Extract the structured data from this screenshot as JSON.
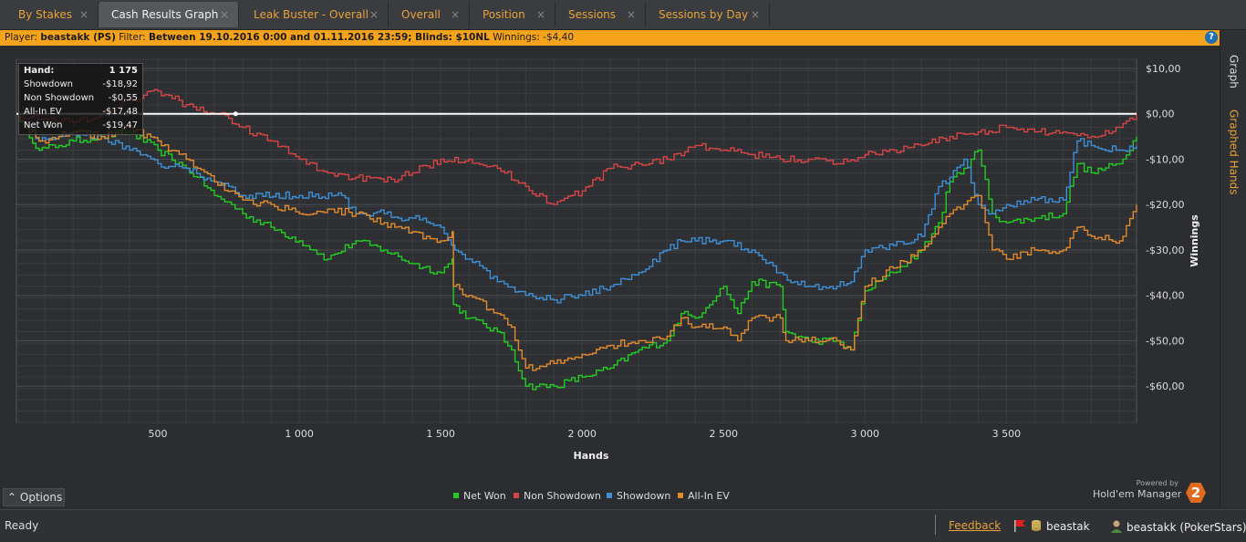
{
  "tabs": [
    {
      "label": "By Stakes",
      "active": false
    },
    {
      "label": "Cash Results Graph",
      "active": true
    },
    {
      "label": "Leak Buster - Overall",
      "active": false
    },
    {
      "label": "Overall",
      "active": false
    },
    {
      "label": "Position",
      "active": false
    },
    {
      "label": "Sessions",
      "active": false
    },
    {
      "label": "Sessions by Day",
      "active": false
    }
  ],
  "tab_close_glyph": "×",
  "filter_bar": {
    "player_label": "Player:",
    "player_value": "beastakk (PS)",
    "filter_label": "Filter:",
    "filter_value": "Between 19.10.2016 0:00 and 01.11.2016 23:59; Blinds: $10NL",
    "winnings_label": "Winnings:",
    "winnings_value": "-$4,40",
    "help_glyph": "?"
  },
  "side_tabs": {
    "graph": "Graph",
    "graphed_hands": "Graphed Hands"
  },
  "tooltip": {
    "rows": [
      {
        "label": "Hand:",
        "value": "1 175"
      },
      {
        "label": "Showdown",
        "value": "-$18,92"
      },
      {
        "label": "Non Showdown",
        "value": "-$0,55"
      },
      {
        "label": "All-In EV",
        "value": "-$17,48"
      },
      {
        "label": "Net Won",
        "value": "-$19,47"
      }
    ]
  },
  "legend": {
    "net_won": "Net Won",
    "non_showdown": "Non Showdown",
    "showdown": "Showdown",
    "all_in_ev": "All-In EV"
  },
  "options_label": "Options",
  "options_glyph": "⌃",
  "powered_by": "Powered by",
  "brand": "Hold'em Manager",
  "brand_badge": "2",
  "status": {
    "ready": "Ready",
    "feedback": "Feedback",
    "db_user": "beastak",
    "player": "beastakk (PokerStars)"
  },
  "colors": {
    "net_won": "#22cc22",
    "non_showdown": "#d64545",
    "showdown": "#3d8fd6",
    "all_in_ev": "#e08a2e",
    "accent": "#f6a31c"
  },
  "chart_data": {
    "type": "line",
    "xlabel": "Hands",
    "ylabel": "Winnings",
    "xlim": [
      0,
      3960
    ],
    "ylim": [
      -68,
      12
    ],
    "x_ticks": [
      500,
      1000,
      1500,
      2000,
      2500,
      3000,
      3500
    ],
    "x_tick_labels": [
      "500",
      "1 000",
      "1 500",
      "2 000",
      "2 500",
      "3 000",
      "3 500"
    ],
    "y_ticks": [
      10,
      0,
      -10,
      -20,
      -30,
      -40,
      -50,
      -60
    ],
    "y_tick_labels": [
      "$10,00",
      "$0,00",
      "-$10,00",
      "-$20,00",
      "-$30,00",
      "-$40,00",
      "-$50,00",
      "-$60,00"
    ],
    "grid": true,
    "legend": "bottom",
    "series": [
      {
        "name": "Net Won",
        "color": "#22cc22",
        "x": [
          0,
          80,
          150,
          200,
          300,
          400,
          500,
          600,
          640,
          700,
          760,
          800,
          900,
          1000,
          1050,
          1100,
          1200,
          1300,
          1400,
          1500,
          1540,
          1545,
          1600,
          1700,
          1750,
          1800,
          1900,
          2000,
          2100,
          2200,
          2300,
          2350,
          2400,
          2500,
          2550,
          2600,
          2700,
          2720,
          2800,
          2900,
          2950,
          3000,
          3100,
          3200,
          3260,
          3300,
          3350,
          3400,
          3450,
          3500,
          3600,
          3700,
          3750,
          3800,
          3900,
          3960
        ],
        "y": [
          0,
          -8,
          -7,
          -6,
          -5,
          -4,
          -8,
          -12,
          -14,
          -18,
          -20,
          -22,
          -25,
          -28,
          -30,
          -32,
          -28,
          -30,
          -33,
          -35,
          -32,
          -42,
          -45,
          -48,
          -52,
          -60,
          -60,
          -58,
          -56,
          -52,
          -50,
          -44,
          -45,
          -38,
          -44,
          -37,
          -38,
          -48,
          -50,
          -50,
          -52,
          -39,
          -35,
          -30,
          -24,
          -15,
          -12,
          -8,
          -22,
          -24,
          -23,
          -22,
          -11,
          -13,
          -11,
          -5
        ]
      },
      {
        "name": "Non Showdown",
        "color": "#d64545",
        "x": [
          0,
          100,
          200,
          300,
          400,
          500,
          600,
          700,
          750,
          800,
          900,
          1000,
          1100,
          1200,
          1300,
          1400,
          1500,
          1600,
          1700,
          1800,
          1900,
          2000,
          2100,
          2200,
          2300,
          2400,
          2500,
          2600,
          2700,
          2800,
          2900,
          3000,
          3100,
          3200,
          3300,
          3400,
          3500,
          3600,
          3700,
          3800,
          3900,
          3960
        ],
        "y": [
          0,
          -1,
          -2,
          0,
          3,
          5,
          2,
          0,
          -1,
          -3,
          -6,
          -10,
          -13,
          -14,
          -15,
          -13,
          -10,
          -10,
          -12,
          -16,
          -20,
          -17,
          -12,
          -11,
          -10,
          -7,
          -8,
          -9,
          -10,
          -10,
          -11,
          -9,
          -8,
          -7,
          -5,
          -4,
          -3,
          -4,
          -4,
          -5,
          -3,
          0
        ]
      },
      {
        "name": "Showdown",
        "color": "#3d8fd6",
        "x": [
          0,
          80,
          150,
          200,
          300,
          400,
          500,
          600,
          700,
          800,
          1000,
          1150,
          1200,
          1300,
          1350,
          1400,
          1500,
          1550,
          1600,
          1650,
          1700,
          1800,
          1900,
          2000,
          2100,
          2200,
          2300,
          2350,
          2400,
          2500,
          2600,
          2700,
          2750,
          2800,
          2900,
          2950,
          3000,
          3100,
          3200,
          3260,
          3300,
          3350,
          3400,
          3450,
          3500,
          3600,
          3700,
          3750,
          3800,
          3900,
          3960
        ],
        "y": [
          0,
          -6,
          -5,
          -4,
          -5,
          -8,
          -11,
          -12,
          -15,
          -18,
          -18,
          -18,
          -22,
          -22,
          -23,
          -23,
          -25,
          -30,
          -32,
          -34,
          -37,
          -40,
          -41,
          -40,
          -38,
          -35,
          -30,
          -28,
          -28,
          -28,
          -30,
          -35,
          -37,
          -38,
          -38,
          -37,
          -30,
          -29,
          -27,
          -16,
          -14,
          -10,
          -20,
          -22,
          -20,
          -19,
          -19,
          -6,
          -7,
          -8,
          -7
        ]
      },
      {
        "name": "All-In EV",
        "color": "#e08a2e",
        "x": [
          0,
          80,
          150,
          200,
          300,
          400,
          500,
          600,
          640,
          700,
          760,
          800,
          900,
          1000,
          1050,
          1100,
          1200,
          1300,
          1400,
          1500,
          1540,
          1545,
          1600,
          1700,
          1750,
          1800,
          1900,
          2000,
          2100,
          2200,
          2300,
          2350,
          2400,
          2500,
          2550,
          2600,
          2700,
          2720,
          2800,
          2900,
          2950,
          3000,
          3100,
          3200,
          3260,
          3300,
          3350,
          3400,
          3450,
          3500,
          3600,
          3700,
          3750,
          3800,
          3900,
          3960
        ],
        "y": [
          0,
          -6,
          -5,
          -4,
          -5,
          -3,
          -6,
          -10,
          -12,
          -15,
          -17,
          -19,
          -20,
          -22,
          -22,
          -21,
          -22,
          -24,
          -26,
          -28,
          -26,
          -38,
          -40,
          -44,
          -47,
          -56,
          -55,
          -53,
          -51,
          -50,
          -49,
          -45,
          -47,
          -47,
          -50,
          -45,
          -45,
          -50,
          -50,
          -50,
          -52,
          -38,
          -34,
          -30,
          -25,
          -22,
          -20,
          -18,
          -30,
          -32,
          -30,
          -30,
          -25,
          -27,
          -28,
          -20
        ]
      }
    ]
  }
}
